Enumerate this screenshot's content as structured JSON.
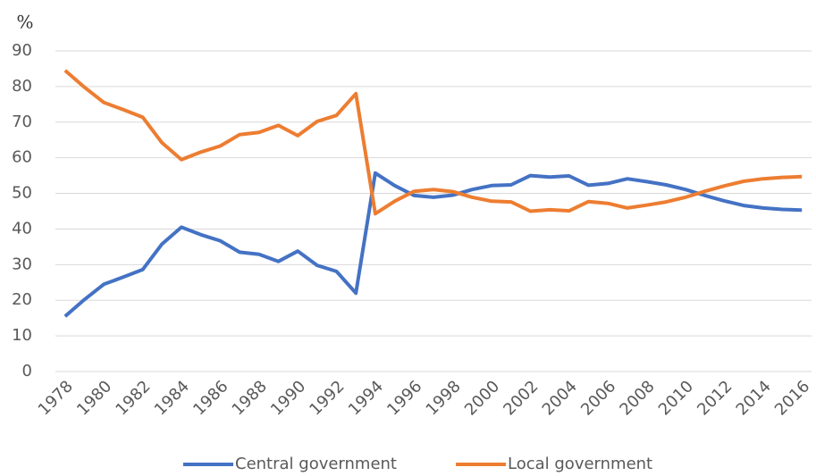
{
  "chart_data": {
    "type": "line",
    "y_axis_label": "%",
    "categories": [
      "1978",
      null,
      "1980",
      null,
      "1982",
      null,
      "1984",
      null,
      "1986",
      null,
      "1988",
      null,
      "1990",
      null,
      "1992",
      null,
      "1994",
      null,
      "1996",
      null,
      "1998",
      null,
      "2000",
      null,
      "2002",
      null,
      "2004",
      null,
      "2006",
      null,
      "2008",
      null,
      "2010",
      null,
      "2012",
      null,
      "2014",
      null,
      "2016"
    ],
    "series": [
      {
        "name": "Central government",
        "color": "#4472c4",
        "values": [
          15.5,
          20.2,
          24.5,
          26.5,
          28.6,
          35.8,
          40.5,
          38.4,
          36.7,
          33.5,
          32.9,
          30.9,
          33.8,
          29.8,
          28.1,
          22.0,
          55.7,
          52.2,
          49.4,
          48.9,
          49.5,
          51.1,
          52.2,
          52.4,
          55.0,
          54.6,
          54.9,
          52.3,
          52.8,
          54.1,
          53.3,
          52.4,
          51.1,
          49.4,
          47.9,
          46.6,
          45.9,
          45.5,
          45.3
        ]
      },
      {
        "name": "Local government",
        "color": "#ed7d31",
        "values": [
          84.5,
          79.8,
          75.5,
          73.5,
          71.4,
          64.2,
          59.5,
          61.6,
          63.3,
          66.5,
          67.1,
          69.1,
          66.2,
          70.2,
          71.9,
          78.0,
          44.3,
          47.8,
          50.6,
          51.1,
          50.5,
          48.9,
          47.8,
          47.6,
          45.0,
          45.4,
          45.1,
          47.7,
          47.2,
          45.9,
          46.7,
          47.6,
          48.9,
          50.6,
          52.1,
          53.4,
          54.1,
          54.5,
          54.7
        ]
      }
    ],
    "ylim": [
      0,
      90
    ],
    "yticks": [
      0,
      10,
      20,
      30,
      40,
      50,
      60,
      70,
      80,
      90
    ],
    "grid": true,
    "legend": "bottom"
  }
}
